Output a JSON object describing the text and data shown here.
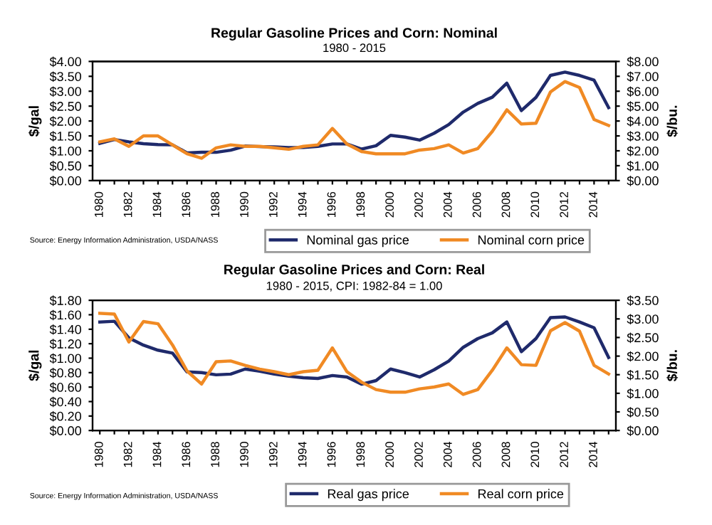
{
  "chart_data": [
    {
      "type": "line",
      "title": "Regular Gasoline Prices and Corn: Nominal",
      "subtitle": "1980 - 2015",
      "ylabel": "$/gal",
      "y2label": "$/bu.",
      "categories": [
        "1980",
        null,
        "1982",
        null,
        "1984",
        null,
        "1986",
        null,
        "1988",
        null,
        "1990",
        null,
        "1992",
        null,
        "1994",
        null,
        "1996",
        null,
        "1998",
        null,
        "2000",
        null,
        "2002",
        null,
        "2004",
        null,
        "2006",
        null,
        "2008",
        null,
        "2010",
        null,
        "2012",
        null,
        "2014",
        null
      ],
      "series": [
        {
          "name": "Nominal gas price",
          "color": "#1f2a6b",
          "values": [
            1.25,
            1.38,
            1.3,
            1.24,
            1.21,
            1.2,
            0.93,
            0.95,
            0.95,
            1.02,
            1.16,
            1.14,
            1.13,
            1.11,
            1.11,
            1.15,
            1.23,
            1.23,
            1.06,
            1.17,
            1.52,
            1.46,
            1.36,
            1.59,
            1.88,
            2.3,
            2.59,
            2.8,
            3.27,
            2.35,
            2.79,
            3.53,
            3.64,
            3.53,
            3.37,
            2.45
          ]
        },
        {
          "name": "Nominal corn price",
          "color": "#f08a24",
          "axis": "y2",
          "values": [
            2.6,
            2.8,
            2.3,
            3.0,
            3.0,
            2.4,
            1.8,
            1.5,
            2.2,
            2.4,
            2.3,
            2.3,
            2.2,
            2.1,
            2.3,
            2.4,
            3.5,
            2.45,
            1.95,
            1.8,
            1.8,
            1.8,
            2.05,
            2.15,
            2.4,
            1.85,
            2.15,
            3.3,
            4.75,
            3.8,
            3.85,
            5.95,
            6.65,
            6.25,
            4.1,
            3.7
          ]
        }
      ],
      "ylim": [
        0,
        4
      ],
      "yticks": [
        {
          "value": 0,
          "label": "$0.00"
        },
        {
          "value": 0.5,
          "label": "$0.50"
        },
        {
          "value": 1,
          "label": "$1.00"
        },
        {
          "value": 1.5,
          "label": "$1.50"
        },
        {
          "value": 2,
          "label": "$2.00"
        },
        {
          "value": 2.5,
          "label": "$2.50"
        },
        {
          "value": 3,
          "label": "$3.00"
        },
        {
          "value": 3.5,
          "label": "$3.50"
        },
        {
          "value": 4,
          "label": "$4.00"
        }
      ],
      "y2lim": [
        0,
        8
      ],
      "y2ticks": [
        {
          "value": 0,
          "label": "$0.00"
        },
        {
          "value": 1,
          "label": "$1.00"
        },
        {
          "value": 2,
          "label": "$2.00"
        },
        {
          "value": 3,
          "label": "$3.00"
        },
        {
          "value": 4,
          "label": "$4.00"
        },
        {
          "value": 5,
          "label": "$5.00"
        },
        {
          "value": 6,
          "label": "$6.00"
        },
        {
          "value": 7,
          "label": "$7.00"
        },
        {
          "value": 8,
          "label": "$8.00"
        }
      ],
      "annotations": [
        "Source: Energy Information Administration, USDA/NASS"
      ],
      "legend": "bottom",
      "grid": false
    },
    {
      "type": "line",
      "title": "Regular Gasoline Prices and Corn: Real",
      "subtitle": "1980 - 2015, CPI: 1982-84 = 1.00",
      "ylabel": "$/gal",
      "y2label": "$/bu.",
      "categories": [
        "1980",
        null,
        "1982",
        null,
        "1984",
        null,
        "1986",
        null,
        "1988",
        null,
        "1990",
        null,
        "1992",
        null,
        "1994",
        null,
        "1996",
        null,
        "1998",
        null,
        "2000",
        null,
        "2002",
        null,
        "2004",
        null,
        "2006",
        null,
        "2008",
        null,
        "2010",
        null,
        "2012",
        null,
        "2014",
        null
      ],
      "series": [
        {
          "name": "Real gas price",
          "color": "#1f2a6b",
          "values": [
            1.5,
            1.51,
            1.28,
            1.18,
            1.11,
            1.07,
            0.81,
            0.8,
            0.77,
            0.78,
            0.85,
            0.82,
            0.78,
            0.75,
            0.73,
            0.72,
            0.76,
            0.74,
            0.64,
            0.69,
            0.85,
            0.8,
            0.74,
            0.84,
            0.96,
            1.15,
            1.27,
            1.35,
            1.5,
            1.09,
            1.27,
            1.56,
            1.57,
            1.5,
            1.42,
            1.01
          ]
        },
        {
          "name": "Real corn price",
          "color": "#f08a24",
          "axis": "y2",
          "values": [
            3.15,
            3.13,
            2.38,
            2.93,
            2.87,
            2.3,
            1.6,
            1.25,
            1.85,
            1.87,
            1.75,
            1.65,
            1.58,
            1.5,
            1.58,
            1.62,
            2.22,
            1.58,
            1.3,
            1.1,
            1.03,
            1.03,
            1.12,
            1.17,
            1.25,
            0.97,
            1.1,
            1.62,
            2.22,
            1.77,
            1.75,
            2.68,
            2.9,
            2.67,
            1.75,
            1.52
          ]
        }
      ],
      "ylim": [
        0,
        1.8
      ],
      "yticks": [
        {
          "value": 0,
          "label": "$0.00"
        },
        {
          "value": 0.2,
          "label": "$0.20"
        },
        {
          "value": 0.4,
          "label": "$0.40"
        },
        {
          "value": 0.6,
          "label": "$0.60"
        },
        {
          "value": 0.8,
          "label": "$0.80"
        },
        {
          "value": 1.0,
          "label": "$1.00"
        },
        {
          "value": 1.2,
          "label": "$1.20"
        },
        {
          "value": 1.4,
          "label": "$1.40"
        },
        {
          "value": 1.6,
          "label": "$1.60"
        },
        {
          "value": 1.8,
          "label": "$1.80"
        }
      ],
      "y2lim": [
        0,
        3.5
      ],
      "y2ticks": [
        {
          "value": 0,
          "label": "$0.00"
        },
        {
          "value": 0.5,
          "label": "$0.50"
        },
        {
          "value": 1.0,
          "label": "$1.00"
        },
        {
          "value": 1.5,
          "label": "$1.50"
        },
        {
          "value": 2.0,
          "label": "$2.00"
        },
        {
          "value": 2.5,
          "label": "$2.50"
        },
        {
          "value": 3.0,
          "label": "$3.00"
        },
        {
          "value": 3.5,
          "label": "$3.50"
        }
      ],
      "annotations": [
        "Source: Energy Information Administration, USDA/NASS"
      ],
      "legend": "bottom",
      "grid": false
    }
  ]
}
